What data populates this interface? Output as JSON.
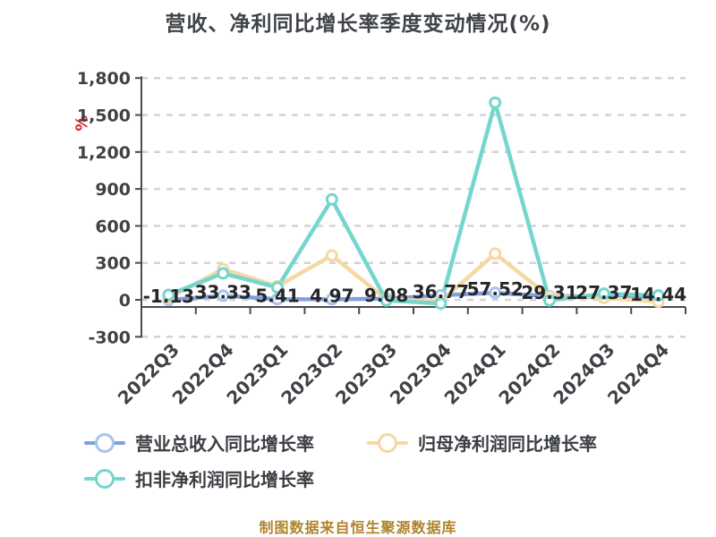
{
  "title": "营收、净利同比增长率季度变动情况(%)",
  "y_axis_unit": "%",
  "caption": "制图数据来自恒生聚源数据库",
  "colors": {
    "title_text": "#3f4347",
    "axis_line": "#4b4b4b",
    "gridline": "#d3d3d3",
    "tick_label": "#3e4145",
    "value_label": "#262626",
    "unit_label_red": "#e12222",
    "caption_gold": "#b0832a",
    "series_blue": "#7f9fe0",
    "series_blue_marker": "#a9c3ea",
    "series_orange": "#f6d8a4",
    "series_teal": "#74d6ce"
  },
  "chart_data": {
    "type": "line",
    "title": "营收、净利同比增长率季度变动情况(%)",
    "xlabel": "",
    "ylabel": "%",
    "ylim": [
      -300,
      1800
    ],
    "grid": true,
    "legend_position": "bottom",
    "y_ticks": {
      "values": [
        1800,
        1500,
        1200,
        900,
        600,
        300,
        0,
        -300
      ],
      "labels": [
        "1,800",
        "1,500",
        "1,200",
        "900",
        "600",
        "300",
        "0",
        "-300"
      ]
    },
    "categories": [
      "2022Q3",
      "2022Q4",
      "2023Q1",
      "2023Q2",
      "2023Q3",
      "2023Q4",
      "2024Q1",
      "2024Q2",
      "2024Q3",
      "2024Q4"
    ],
    "series": [
      {
        "name": "营业总收入同比增长率",
        "line_color": "#7f9fe0",
        "marker_color": "#a9c3ea",
        "values": [
          -1.13,
          33.33,
          5.41,
          4.97,
          9.08,
          36.77,
          57.52,
          29.31,
          27.37,
          14.44
        ],
        "value_labels": [
          "-1.13",
          "33.33",
          "5.41",
          "4.97",
          "9.08",
          "36.77",
          "57.52",
          "29.31",
          "27.37",
          "14.44"
        ],
        "show_value_labels": true
      },
      {
        "name": "归母净利润同比增长率",
        "line_color": "#f6d8a4",
        "marker_color": "#f6d8a4",
        "values": [
          15,
          250,
          110,
          360,
          3,
          -12,
          375,
          25,
          15,
          -15
        ],
        "show_value_labels": false
      },
      {
        "name": "扣非净利润同比增长率",
        "line_color": "#74d6ce",
        "marker_color": "#74d6ce",
        "values": [
          40,
          215,
          100,
          815,
          -5,
          -30,
          1600,
          -5,
          50,
          35
        ],
        "show_value_labels": false
      }
    ]
  },
  "legend": {
    "rows": [
      {
        "items": [
          0,
          1
        ]
      },
      {
        "items": [
          2
        ]
      }
    ]
  }
}
